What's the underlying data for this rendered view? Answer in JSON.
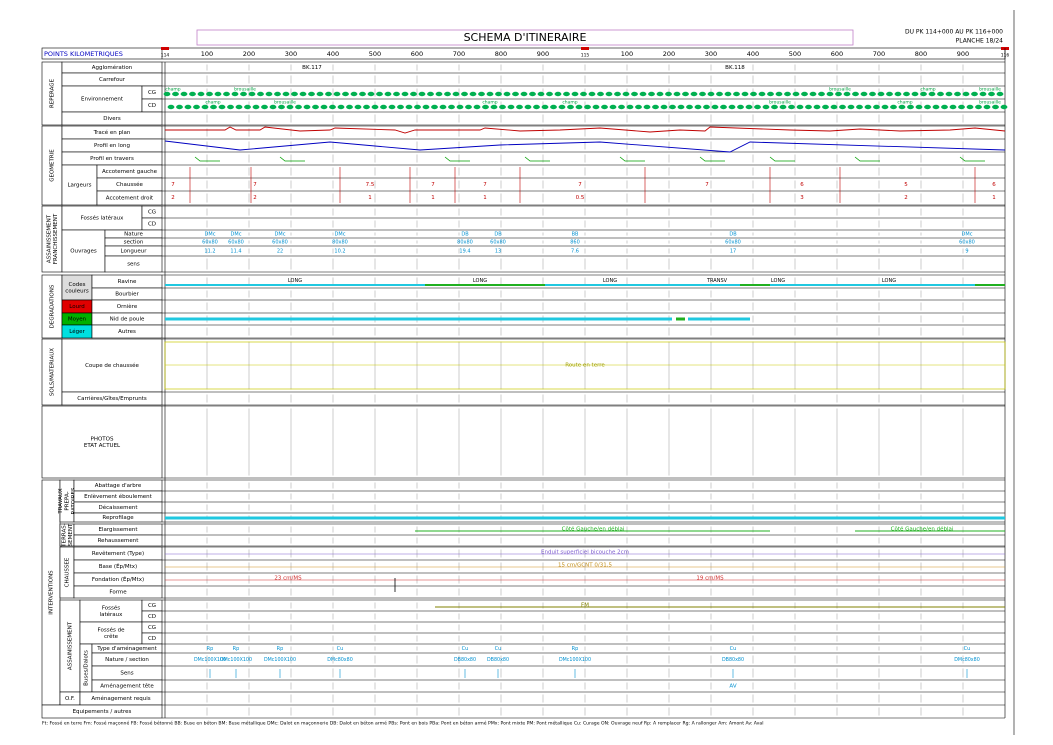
{
  "header": {
    "title": "SCHEMA D'ITINERAIRE",
    "range": "DU PK 114+000 AU PK 116+000",
    "sheet": "PLANCHE 18/24",
    "km_label": "POINTS KILOMETRIQUES",
    "km_ticks": [
      100,
      200,
      300,
      400,
      500,
      600,
      700,
      800,
      900,
      100,
      200,
      300,
      400,
      500,
      600,
      700,
      800,
      900
    ],
    "pk_markers": [
      "114",
      "115",
      "116"
    ]
  },
  "left_column": [
    "REPERAGE",
    "Agglomération",
    "Carrefour",
    "Environnement",
    "CG",
    "CD",
    "Divers",
    "GEOMETRIE",
    "Tracé en plan",
    "Profil en long",
    "Profil en travers",
    "Largeurs",
    "Accotement gauche",
    "Chaussée",
    "Accotement droit",
    [
      "ASSAINISSEMENT",
      "FRANCHISSEMENT"
    ],
    "Fossés latéraux",
    "CG",
    "CD",
    "Ouvrages",
    "Nature",
    "section",
    "Longueur",
    "sens",
    "DEGRADATIONS",
    [
      "Codes",
      "couleurs"
    ],
    "Lourd",
    "Moyen",
    "Léger",
    "Ravine",
    "Bourbier",
    "Ornière",
    "Nid de poule",
    "Autres",
    "SOLS/MATERIAUX",
    "Coupe de chaussée",
    "Carrières/Gîtes/Emprunts",
    [
      "PHOTOS",
      "ETAT ACTUEL"
    ],
    "INTERVENTIONS",
    [
      "TRAVAUX",
      "PREPA-",
      "RATOIRES"
    ],
    "Abattage d'arbre",
    "Enlèvement éboulement",
    "Décaissement",
    "Reprofilage",
    [
      "TERRAS-",
      "SEMENT"
    ],
    "Elargissement",
    "Rehaussement",
    "CHAUSSEE",
    "Revêtement (Type)",
    "Base (Ép/Mtx)",
    "Fondation (Ép/Mtx)",
    "Forme",
    "ASSAINISSEMENT",
    [
      "Fossés",
      "latéraux"
    ],
    "CG",
    "CD",
    [
      "Fossés de",
      "crête"
    ],
    "CG",
    "CD",
    "Buses/Dalots",
    "Type d'aménagement",
    "Nature / section",
    "Sens",
    "Aménagement tête",
    "O.F.",
    "Aménagement requis",
    "Equipements / autres"
  ],
  "annotations": {
    "landmarks": [
      "BK.117",
      "BK.118"
    ],
    "environment_cg": [
      "champ",
      "brousaille",
      "brousaille",
      "champ",
      "brousaille"
    ],
    "environment_cd": [
      "champ",
      "brousaille",
      "champ",
      "champ",
      "brousaille",
      "champ",
      "brousaille"
    ],
    "carriageway_width": [
      7,
      7,
      7.5,
      7,
      7,
      7,
      7,
      6,
      5,
      6
    ],
    "shoulder_right": [
      2,
      2,
      1,
      1,
      1,
      0.5,
      3,
      2,
      1
    ],
    "structure_nature": [
      "DMc",
      "DMc",
      "DMc",
      "DMc",
      "DB",
      "DB",
      "BB",
      "DB",
      "DMc"
    ],
    "structure_section": [
      "60x80",
      "60x80",
      "60x80",
      "80x80",
      "80x80",
      "60x80",
      "860",
      "60x80",
      "60x80"
    ],
    "structure_length": [
      11.2,
      11.4,
      22,
      10.2,
      19.4,
      13,
      7.6,
      17,
      9
    ],
    "ravine": [
      "LONG",
      "LONG",
      "LONG",
      "TRANSV",
      "LONG",
      "LONG"
    ],
    "soil": "Route en terre",
    "widening": [
      "Côté Gauche/en déblai",
      "Côté Gauche/en déblai"
    ],
    "surfacing": "Enduit superficiel bicouche 2cm",
    "base": "15 cm/GCNT 0/31,5",
    "subbase": [
      "23 cm/MS",
      "19 cm/MS"
    ],
    "ditch_cg": "FM",
    "culvert_action": [
      "Rp",
      "Rp",
      "Rp",
      "Cu",
      "Cu",
      "Cu",
      "Rp",
      "Cu",
      "Cu"
    ],
    "culvert_type": [
      "DMc100X100",
      "DMc100X100",
      "DMc100X100",
      "DMc80x80",
      "DB80x80",
      "DB80x80",
      "DMc100X100",
      "DB80x80",
      "DMc80x80"
    ],
    "culvert_head": "AV"
  },
  "legend": "Ft: Fossé en terre   Fm: Fossé maçonné   FB: Fossé bétonné   BB: Buse en béton   BM: Buse métallique   DMc: Dalot en maçonnerie   DB: Dalot en béton armé   PBs: Pont en bois   PBa: Pont en béton armé   PMx: Pont mixte   PM: Pont métallique   Cu: Curage   ON: Ouvrage neuf   Rp: A remplacer   Rg: A rallonger   Am: Amont   Av: Aval"
}
